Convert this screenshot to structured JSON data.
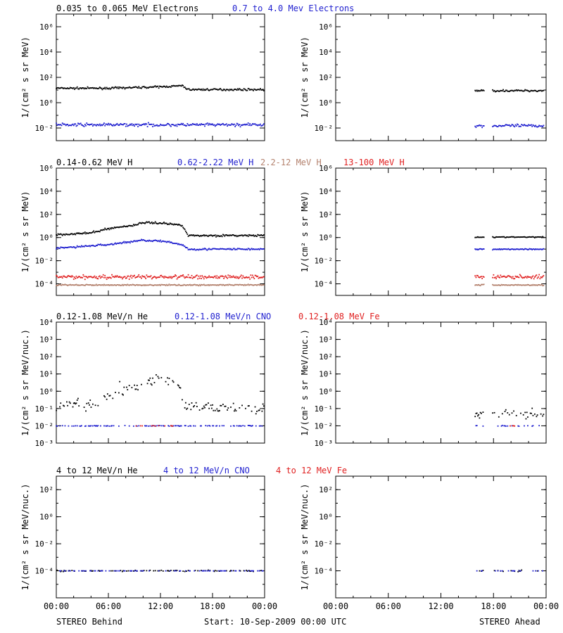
{
  "colors": {
    "black": "#000000",
    "blue": "#1f1fcf",
    "brown": "#b4826e",
    "red": "#e02020"
  },
  "footer": {
    "left": "STEREO Behind",
    "center": "Start: 10-Sep-2009 00:00 UTC",
    "right": "STEREO Ahead"
  },
  "row_titles": [
    [
      {
        "text": "0.035 to 0.065 MeV Electrons",
        "color": "black"
      },
      {
        "text": "0.7 to 4.0 Mev Electrons",
        "color": "blue"
      }
    ],
    [
      {
        "text": "0.14-0.62 MeV H",
        "color": "black"
      },
      {
        "text": "0.62-2.22 MeV H",
        "color": "blue"
      },
      {
        "text": "2.2-12 MeV H",
        "color": "brown"
      },
      {
        "text": "13-100 MeV H",
        "color": "red"
      }
    ],
    [
      {
        "text": "0.12-1.08 MeV/n He",
        "color": "black"
      },
      {
        "text": "0.12-1.08 MeV/n CNO",
        "color": "blue"
      },
      {
        "text": "0.12-1.08 MeV Fe",
        "color": "red"
      }
    ],
    [
      {
        "text": "4 to 12 MeV/n He",
        "color": "black"
      },
      {
        "text": "4 to 12 MeV/n CNO",
        "color": "blue"
      },
      {
        "text": "4 to 12 MeV Fe",
        "color": "red"
      }
    ]
  ],
  "chart_data": [
    {
      "type": "scatter",
      "spacecraft": "STEREO Behind",
      "row": 0,
      "ylabel": "1/(cm² s sr MeV)",
      "ylog": true,
      "ylim": [
        0.001,
        10000000
      ],
      "yticks": [
        {
          "v": 0.01,
          "label": "10⁻²"
        },
        {
          "v": 1,
          "label": "10⁰"
        },
        {
          "v": 100,
          "label": "10²"
        },
        {
          "v": 10000,
          "label": "10⁴"
        },
        {
          "v": 1000000,
          "label": "10⁶"
        }
      ],
      "xlim": [
        0,
        24
      ],
      "xticks": [
        "00:00",
        "06:00",
        "12:00",
        "18:00",
        "00:00"
      ],
      "series": [
        {
          "name": "0.035 to 0.065 MeV Electrons",
          "color": "black",
          "coverage": [
            [
              0,
              24
            ]
          ],
          "levels": [
            [
              0,
              14
            ],
            [
              6,
              14
            ],
            [
              12,
              18
            ],
            [
              14.5,
              22
            ],
            [
              15.2,
              11
            ],
            [
              24,
              11
            ]
          ],
          "scatter": 0.07
        },
        {
          "name": "0.7 to 4.0 Mev Electrons",
          "color": "blue",
          "coverage": [
            [
              0,
              24
            ]
          ],
          "levels": [
            [
              0,
              0.018
            ],
            [
              24,
              0.018
            ]
          ],
          "scatter": 0.12
        }
      ]
    },
    {
      "type": "scatter",
      "spacecraft": "STEREO Ahead",
      "row": 0,
      "ylabel": "1/(cm² s sr MeV)",
      "ylog": true,
      "ylim": [
        0.001,
        10000000
      ],
      "yticks": [
        {
          "v": 0.01,
          "label": "10⁻²"
        },
        {
          "v": 1,
          "label": "10⁰"
        },
        {
          "v": 100,
          "label": "10²"
        },
        {
          "v": 10000,
          "label": "10⁴"
        },
        {
          "v": 1000000,
          "label": "10⁶"
        }
      ],
      "xlim": [
        0,
        24
      ],
      "xticks": [
        "00:00",
        "06:00",
        "12:00",
        "18:00",
        "00:00"
      ],
      "series": [
        {
          "name": "0.035 to 0.065 MeV Electrons",
          "color": "black",
          "coverage": [
            [
              15.9,
              17
            ],
            [
              17.9,
              23.8
            ]
          ],
          "levels": [
            [
              0,
              9
            ],
            [
              24,
              9
            ]
          ],
          "scatter": 0.07
        },
        {
          "name": "0.7 to 4.0 Mev Electrons",
          "color": "blue",
          "coverage": [
            [
              15.9,
              17
            ],
            [
              17.9,
              23.8
            ]
          ],
          "levels": [
            [
              0,
              0.015
            ],
            [
              24,
              0.015
            ]
          ],
          "scatter": 0.12
        }
      ]
    },
    {
      "type": "scatter",
      "spacecraft": "STEREO Behind",
      "row": 1,
      "ylabel": "1/(cm² s sr MeV)",
      "ylog": true,
      "ylim": [
        1e-05,
        1000000
      ],
      "yticks": [
        {
          "v": 0.0001,
          "label": "10⁻⁴"
        },
        {
          "v": 0.01,
          "label": "10⁻²"
        },
        {
          "v": 1,
          "label": "10⁰"
        },
        {
          "v": 100,
          "label": "10²"
        },
        {
          "v": 10000,
          "label": "10⁴"
        },
        {
          "v": 1000000,
          "label": "10⁶"
        }
      ],
      "xlim": [
        0,
        24
      ],
      "xticks": [
        "00:00",
        "06:00",
        "12:00",
        "18:00",
        "00:00"
      ],
      "series": [
        {
          "name": "0.14-0.62 MeV H",
          "color": "black",
          "coverage": [
            [
              0,
              24
            ]
          ],
          "levels": [
            [
              0,
              1.8
            ],
            [
              4,
              2.5
            ],
            [
              6,
              6
            ],
            [
              9,
              12
            ],
            [
              10,
              20
            ],
            [
              12,
              18
            ],
            [
              14.5,
              12
            ],
            [
              15.2,
              1.5
            ],
            [
              24,
              1.5
            ]
          ],
          "scatter": 0.08
        },
        {
          "name": "0.62-2.22 MeV H",
          "color": "blue",
          "coverage": [
            [
              0,
              24
            ]
          ],
          "levels": [
            [
              0,
              0.12
            ],
            [
              6,
              0.25
            ],
            [
              10,
              0.6
            ],
            [
              12,
              0.5
            ],
            [
              14.5,
              0.25
            ],
            [
              15.2,
              0.1
            ],
            [
              24,
              0.1
            ]
          ],
          "scatter": 0.08
        },
        {
          "name": "2.2-12 MeV H",
          "color": "brown",
          "coverage": [
            [
              0,
              24
            ]
          ],
          "levels": [
            [
              0,
              8e-05
            ],
            [
              24,
              8e-05
            ]
          ],
          "scatter": 0.05
        },
        {
          "name": "13-100 MeV H",
          "color": "red",
          "coverage": [
            [
              0,
              24
            ]
          ],
          "levels": [
            [
              0,
              0.0004
            ],
            [
              24,
              0.0004
            ]
          ],
          "scatter": 0.18
        }
      ]
    },
    {
      "type": "scatter",
      "spacecraft": "STEREO Ahead",
      "row": 1,
      "ylabel": "1/(cm² s sr MeV)",
      "ylog": true,
      "ylim": [
        1e-05,
        1000000
      ],
      "yticks": [
        {
          "v": 0.0001,
          "label": "10⁻⁴"
        },
        {
          "v": 0.01,
          "label": "10⁻²"
        },
        {
          "v": 1,
          "label": "10⁰"
        },
        {
          "v": 100,
          "label": "10²"
        },
        {
          "v": 10000,
          "label": "10⁴"
        },
        {
          "v": 1000000,
          "label": "10⁶"
        }
      ],
      "xlim": [
        0,
        24
      ],
      "xticks": [
        "00:00",
        "06:00",
        "12:00",
        "18:00",
        "00:00"
      ],
      "series": [
        {
          "name": "0.14-0.62 MeV H",
          "color": "black",
          "coverage": [
            [
              15.9,
              17
            ],
            [
              17.9,
              23.8
            ]
          ],
          "levels": [
            [
              0,
              1.1
            ],
            [
              24,
              1.1
            ]
          ],
          "scatter": 0.04
        },
        {
          "name": "0.62-2.22 MeV H",
          "color": "blue",
          "coverage": [
            [
              15.9,
              17
            ],
            [
              17.9,
              23.8
            ]
          ],
          "levels": [
            [
              0,
              0.1
            ],
            [
              24,
              0.1
            ]
          ],
          "scatter": 0.05
        },
        {
          "name": "2.2-12 MeV H",
          "color": "brown",
          "coverage": [
            [
              15.9,
              17
            ],
            [
              17.9,
              23.8
            ]
          ],
          "levels": [
            [
              0,
              8e-05
            ],
            [
              24,
              8e-05
            ]
          ],
          "scatter": 0.05
        },
        {
          "name": "13-100 MeV H",
          "color": "red",
          "coverage": [
            [
              15.9,
              17
            ],
            [
              17.9,
              23.8
            ]
          ],
          "levels": [
            [
              0,
              0.0004
            ],
            [
              24,
              0.0004
            ]
          ],
          "scatter": 0.18
        }
      ]
    },
    {
      "type": "scatter",
      "spacecraft": "STEREO Behind",
      "row": 2,
      "ylabel": "1/(cm² s sr MeV/nuc.)",
      "ylog": true,
      "ylim": [
        0.001,
        10000
      ],
      "yticks": [
        {
          "v": 0.001,
          "label": "10⁻³"
        },
        {
          "v": 0.01,
          "label": "10⁻²"
        },
        {
          "v": 0.1,
          "label": "10⁻¹"
        },
        {
          "v": 1,
          "label": "10⁰"
        },
        {
          "v": 10,
          "label": "10¹"
        },
        {
          "v": 100,
          "label": "10²"
        },
        {
          "v": 1000,
          "label": "10³"
        },
        {
          "v": 10000,
          "label": "10⁴"
        }
      ],
      "xlim": [
        0,
        24
      ],
      "xticks": [
        "00:00",
        "06:00",
        "12:00",
        "18:00",
        "00:00"
      ],
      "series": [
        {
          "name": "0.12-1.08 MeV/n He",
          "color": "black",
          "coverage": [
            [
              0,
              24
            ]
          ],
          "levels": [
            [
              0,
              0.12
            ],
            [
              5,
              0.2
            ],
            [
              7,
              1
            ],
            [
              10,
              3
            ],
            [
              12,
              6
            ],
            [
              14,
              2.5
            ],
            [
              15,
              0.15
            ],
            [
              24,
              0.1
            ]
          ],
          "scatter": 0.35,
          "sparse": 0.55
        },
        {
          "name": "0.12-1.08 MeV/n CNO",
          "color": "blue",
          "coverage": [
            [
              0,
              24
            ]
          ],
          "levels": [
            [
              0,
              0.01
            ],
            [
              24,
              0.01
            ]
          ],
          "scatter": 0.02,
          "sparse": 0.45
        },
        {
          "name": "0.12-1.08 MeV Fe",
          "color": "red",
          "coverage": [
            [
              8,
              14
            ]
          ],
          "levels": [
            [
              0,
              0.01
            ],
            [
              24,
              0.01
            ]
          ],
          "scatter": 0.02,
          "sparse": 0.2
        }
      ]
    },
    {
      "type": "scatter",
      "spacecraft": "STEREO Ahead",
      "row": 2,
      "ylabel": "1/(cm² s sr MeV/nuc.)",
      "ylog": true,
      "ylim": [
        0.001,
        10000
      ],
      "yticks": [
        {
          "v": 0.001,
          "label": "10⁻³"
        },
        {
          "v": 0.01,
          "label": "10⁻²"
        },
        {
          "v": 0.1,
          "label": "10⁻¹"
        },
        {
          "v": 1,
          "label": "10⁰"
        },
        {
          "v": 10,
          "label": "10¹"
        },
        {
          "v": 100,
          "label": "10²"
        },
        {
          "v": 1000,
          "label": "10³"
        },
        {
          "v": 10000,
          "label": "10⁴"
        }
      ],
      "xlim": [
        0,
        24
      ],
      "xticks": [
        "00:00",
        "06:00",
        "12:00",
        "18:00",
        "00:00"
      ],
      "series": [
        {
          "name": "0.12-1.08 MeV/n He",
          "color": "black",
          "coverage": [
            [
              15.9,
              17
            ],
            [
              17.9,
              23.8
            ]
          ],
          "levels": [
            [
              0,
              0.05
            ],
            [
              24,
              0.05
            ]
          ],
          "scatter": 0.3,
          "sparse": 0.5
        },
        {
          "name": "0.12-1.08 MeV/n CNO",
          "color": "blue",
          "coverage": [
            [
              15.9,
              17
            ],
            [
              17.9,
              23.8
            ]
          ],
          "levels": [
            [
              0,
              0.01
            ],
            [
              24,
              0.01
            ]
          ],
          "scatter": 0.02,
          "sparse": 0.3
        },
        {
          "name": "0.12-1.08 MeV Fe",
          "color": "red",
          "coverage": [
            [
              19.5,
              20.5
            ]
          ],
          "levels": [
            [
              0,
              0.01
            ],
            [
              24,
              0.01
            ]
          ],
          "scatter": 0.02,
          "sparse": 0.3
        }
      ]
    },
    {
      "type": "scatter",
      "spacecraft": "STEREO Behind",
      "row": 3,
      "ylabel": "1/(cm² s sr MeV/nuc.)",
      "ylog": true,
      "ylim": [
        1e-06,
        1000
      ],
      "yticks": [
        {
          "v": 0.0001,
          "label": "10⁻⁴"
        },
        {
          "v": 0.01,
          "label": "10⁻²"
        },
        {
          "v": 1,
          "label": "10⁰"
        },
        {
          "v": 100,
          "label": "10²"
        }
      ],
      "xlim": [
        0,
        24
      ],
      "xticks": [
        "00:00",
        "06:00",
        "12:00",
        "18:00",
        "00:00"
      ],
      "series": [
        {
          "name": "4 to 12 MeV/n He",
          "color": "black",
          "coverage": [
            [
              0,
              24
            ]
          ],
          "levels": [
            [
              0,
              0.0001
            ],
            [
              24,
              0.0001
            ]
          ],
          "scatter": 0.05,
          "sparse": 0.35
        },
        {
          "name": "4 to 12 MeV/n CNO",
          "color": "blue",
          "coverage": [
            [
              0,
              24
            ]
          ],
          "levels": [
            [
              0,
              0.0001
            ],
            [
              24,
              0.0001
            ]
          ],
          "scatter": 0.0,
          "sparse": 0.4
        }
      ]
    },
    {
      "type": "scatter",
      "spacecraft": "STEREO Ahead",
      "row": 3,
      "ylabel": "1/(cm² s sr MeV/nuc.)",
      "ylog": true,
      "ylim": [
        1e-06,
        1000
      ],
      "yticks": [
        {
          "v": 0.0001,
          "label": "10⁻⁴"
        },
        {
          "v": 0.01,
          "label": "10⁻²"
        },
        {
          "v": 1,
          "label": "10⁰"
        },
        {
          "v": 100,
          "label": "10²"
        }
      ],
      "xlim": [
        0,
        24
      ],
      "xticks": [
        "00:00",
        "06:00",
        "12:00",
        "18:00",
        "00:00"
      ],
      "series": [
        {
          "name": "4 to 12 MeV/n He",
          "color": "black",
          "coverage": [
            [
              15.9,
              17
            ],
            [
              17.9,
              23.8
            ]
          ],
          "levels": [
            [
              0,
              0.0001
            ],
            [
              24,
              0.0001
            ]
          ],
          "scatter": 0.05,
          "sparse": 0.2
        },
        {
          "name": "4 to 12 MeV/n CNO",
          "color": "blue",
          "coverage": [
            [
              15.9,
              17
            ],
            [
              17.9,
              23.8
            ]
          ],
          "levels": [
            [
              0,
              0.0001
            ],
            [
              24,
              0.0001
            ]
          ],
          "scatter": 0.0,
          "sparse": 0.25
        }
      ]
    }
  ]
}
